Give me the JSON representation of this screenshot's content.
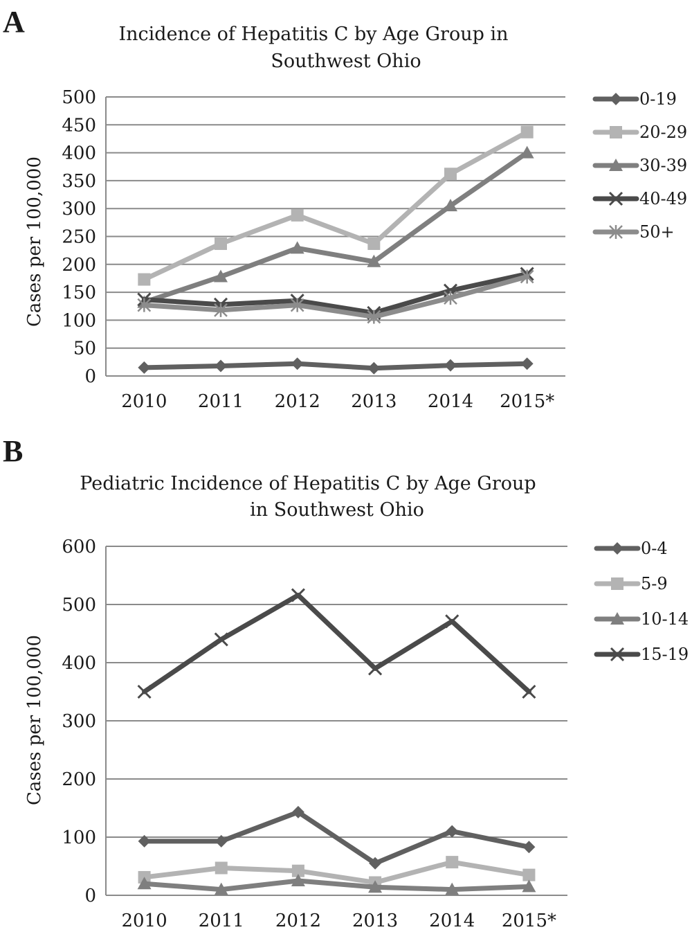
{
  "panels": [
    {
      "letter": "A",
      "title_lines": [
        "Incidence of Hepatitis C by Age Group in",
        "Southwest Ohio"
      ],
      "ylabel": "Cases per 100,000"
    },
    {
      "letter": "B",
      "title_lines": [
        "Pediatric Incidence of Hepatitis C by Age Group",
        "in Southwest Ohio"
      ],
      "ylabel": "Cases per 100,000"
    }
  ],
  "chart_data": [
    {
      "type": "line",
      "title": "Incidence of Hepatitis C by Age Group in Southwest Ohio",
      "xlabel": "",
      "ylabel": "Cases per 100,000",
      "categories": [
        "2010",
        "2011",
        "2012",
        "2013",
        "2014",
        "2015*"
      ],
      "ylim": [
        0,
        500
      ],
      "yticks": [
        0,
        50,
        100,
        150,
        200,
        250,
        300,
        350,
        400,
        450,
        500
      ],
      "grid": true,
      "legend": "right",
      "series": [
        {
          "name": "0-19",
          "marker": "diamond",
          "color": "#606060",
          "values": [
            15,
            18,
            22,
            14,
            19,
            22
          ]
        },
        {
          "name": "20-29",
          "marker": "square",
          "color": "#b3b3b3",
          "values": [
            173,
            237,
            288,
            237,
            362,
            437
          ]
        },
        {
          "name": "30-39",
          "marker": "triangle",
          "color": "#7f7f7f",
          "values": [
            132,
            178,
            229,
            205,
            305,
            400
          ]
        },
        {
          "name": "40-49",
          "marker": "x",
          "color": "#4a4a4a",
          "values": [
            137,
            128,
            135,
            113,
            153,
            183
          ]
        },
        {
          "name": "50+",
          "marker": "star",
          "color": "#8c8c8c",
          "values": [
            127,
            118,
            127,
            106,
            140,
            178
          ]
        }
      ]
    },
    {
      "type": "line",
      "title": "Pediatric Incidence of Hepatitis C by Age Group in Southwest Ohio",
      "xlabel": "",
      "ylabel": "Cases per 100,000",
      "categories": [
        "2010",
        "2011",
        "2012",
        "2013",
        "2014",
        "2015*"
      ],
      "ylim": [
        0,
        600
      ],
      "yticks": [
        0,
        100,
        200,
        300,
        400,
        500,
        600
      ],
      "grid": true,
      "legend": "right",
      "series": [
        {
          "name": "0-4",
          "marker": "diamond",
          "color": "#606060",
          "values": [
            93,
            93,
            143,
            55,
            110,
            83
          ]
        },
        {
          "name": "5-9",
          "marker": "square",
          "color": "#b3b3b3",
          "values": [
            31,
            47,
            42,
            22,
            57,
            35
          ]
        },
        {
          "name": "10-14",
          "marker": "triangle",
          "color": "#7f7f7f",
          "values": [
            20,
            10,
            25,
            14,
            10,
            15
          ]
        },
        {
          "name": "15-19",
          "marker": "x",
          "color": "#4a4a4a",
          "values": [
            350,
            440,
            516,
            390,
            471,
            350
          ]
        }
      ]
    }
  ]
}
